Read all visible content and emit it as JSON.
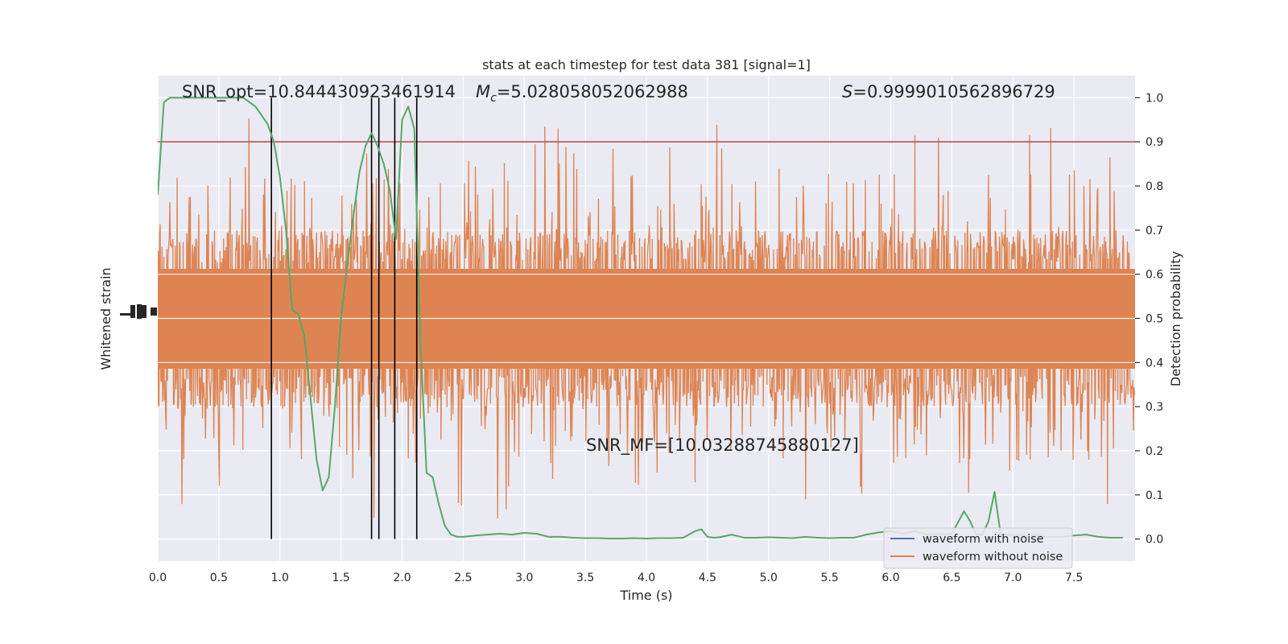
{
  "chart_data": {
    "type": "line",
    "title": "stats at each timestep for test data 381 [signal=1]",
    "xlabel": "Time (s)",
    "ylabel_left": "Whitened strain",
    "ylabel_right": "Detection probability",
    "xlim": [
      0,
      8.0
    ],
    "ylim_right": [
      -0.05,
      1.05
    ],
    "x_ticks": [
      "0.0",
      "0.5",
      "1.0",
      "1.5",
      "2.0",
      "2.5",
      "3.0",
      "3.5",
      "4.0",
      "4.5",
      "5.0",
      "5.5",
      "6.0",
      "6.5",
      "7.0",
      "7.5"
    ],
    "y_ticks_right": [
      "0.0",
      "0.1",
      "0.2",
      "0.3",
      "0.4",
      "0.5",
      "0.6",
      "0.7",
      "0.8",
      "0.9",
      "1.0"
    ],
    "grid": true,
    "threshold": 0.9,
    "vlines": [
      0.93,
      1.75,
      1.81,
      1.94,
      2.12
    ],
    "annotations": {
      "snr_opt": "SNR_opt=10.844430923461914",
      "mc_symbol": "M",
      "mc_sub": "c",
      "mc_value": "=5.028058052062988",
      "s_symbol": "S",
      "s_value": "=0.9999010562896729",
      "snr_mf": "SNR_MF=[10.03288745880127]"
    },
    "legend": {
      "placement": "lower-right",
      "entries": [
        "waveform with noise",
        "waveform without noise"
      ]
    },
    "colors": {
      "background": "#eaeaf2",
      "noise": "#4c72b0",
      "strain": "#dd8452",
      "probability": "#55a868",
      "threshold": "#c44e52",
      "vline": "#000000"
    },
    "series": [
      {
        "name": "Detection probability",
        "x": [
          0.0,
          0.05,
          0.1,
          0.15,
          0.2,
          0.25,
          0.3,
          0.35,
          0.4,
          0.45,
          0.5,
          0.55,
          0.6,
          0.65,
          0.7,
          0.75,
          0.8,
          0.85,
          0.9,
          0.95,
          1.0,
          1.05,
          1.1,
          1.15,
          1.2,
          1.25,
          1.3,
          1.35,
          1.4,
          1.45,
          1.5,
          1.55,
          1.6,
          1.65,
          1.7,
          1.75,
          1.8,
          1.85,
          1.9,
          1.95,
          2.0,
          2.05,
          2.1,
          2.15,
          2.2,
          2.25,
          2.3,
          2.35,
          2.4,
          2.45,
          2.5,
          2.6,
          2.7,
          2.8,
          2.9,
          3.0,
          3.1,
          3.2,
          3.3,
          3.4,
          3.5,
          3.6,
          3.7,
          3.8,
          3.9,
          4.0,
          4.1,
          4.2,
          4.3,
          4.4,
          4.45,
          4.5,
          4.55,
          4.6,
          4.7,
          4.8,
          4.9,
          5.0,
          5.1,
          5.2,
          5.3,
          5.4,
          5.5,
          5.6,
          5.7,
          5.8,
          5.9,
          6.0,
          6.1,
          6.2,
          6.3,
          6.4,
          6.5,
          6.6,
          6.65,
          6.7,
          6.75,
          6.8,
          6.85,
          6.9,
          6.95,
          7.0,
          7.1,
          7.2,
          7.3,
          7.4,
          7.5,
          7.6,
          7.7,
          7.8,
          7.9
        ],
        "y": [
          0.78,
          0.99,
          1.0,
          1.0,
          1.0,
          1.0,
          1.0,
          1.0,
          1.0,
          1.0,
          1.0,
          1.0,
          1.0,
          1.0,
          1.0,
          0.99,
          0.98,
          0.96,
          0.94,
          0.9,
          0.82,
          0.7,
          0.52,
          0.51,
          0.46,
          0.32,
          0.18,
          0.11,
          0.14,
          0.3,
          0.5,
          0.62,
          0.73,
          0.83,
          0.89,
          0.92,
          0.89,
          0.85,
          0.79,
          0.68,
          0.95,
          0.98,
          0.93,
          0.45,
          0.15,
          0.14,
          0.08,
          0.03,
          0.01,
          0.005,
          0.005,
          0.008,
          0.01,
          0.012,
          0.01,
          0.014,
          0.012,
          0.005,
          0.005,
          0.003,
          0.002,
          0.002,
          0.001,
          0.001,
          0.002,
          0.001,
          0.002,
          0.002,
          0.003,
          0.018,
          0.022,
          0.005,
          0.003,
          0.004,
          0.01,
          0.003,
          0.003,
          0.004,
          0.003,
          0.002,
          0.005,
          0.003,
          0.002,
          0.003,
          0.003,
          0.01,
          0.015,
          0.018,
          0.012,
          0.018,
          0.01,
          0.01,
          0.012,
          0.063,
          0.04,
          0.01,
          0.01,
          0.04,
          0.107,
          0.01,
          0.01,
          0.008,
          0.008,
          0.008,
          0.005,
          0.005,
          0.008,
          0.01,
          0.005,
          0.003,
          0.003
        ]
      }
    ]
  }
}
